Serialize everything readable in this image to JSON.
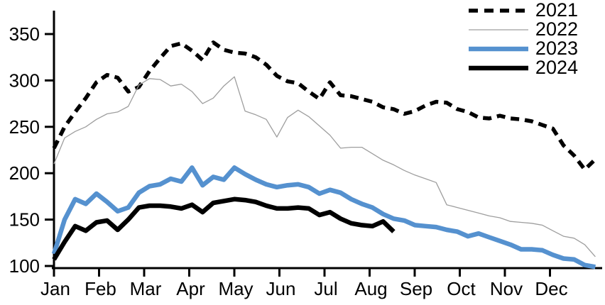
{
  "chart_data": {
    "type": "line",
    "title": "",
    "x_axis": {
      "tick_labels": [
        "Jan",
        "Feb",
        "Mar",
        "Apr",
        "May",
        "Jun",
        "Jul",
        "Aug",
        "Sep",
        "Oct",
        "Nov",
        "Dec"
      ],
      "unit": "month"
    },
    "y_axis": {
      "ticks": [
        100,
        150,
        200,
        250,
        300,
        350
      ],
      "range": [
        100,
        377
      ],
      "grid": false
    },
    "legend": {
      "position": "top-right",
      "entries": [
        "2021",
        "2022",
        "2023",
        "2024"
      ]
    },
    "sampling": "weekly (52 points per full year; 2024 partial, ends mid-August)",
    "series": [
      {
        "name": "2021",
        "style": "dashed",
        "color": "#000000",
        "width": 5.5,
        "values": [
          227,
          250,
          266,
          281,
          298,
          306,
          303,
          288,
          293,
          310,
          324,
          337,
          340,
          332,
          322,
          341,
          333,
          330,
          329,
          325,
          317,
          305,
          299,
          297,
          288,
          280,
          298,
          284,
          283,
          280,
          277,
          271,
          269,
          264,
          267,
          273,
          277,
          276,
          269,
          266,
          260,
          259,
          262,
          259,
          258,
          256,
          252,
          248,
          230,
          219,
          204,
          215
        ]
      },
      {
        "name": "2022",
        "style": "solid",
        "color": "#9e9e9e",
        "width": 1.3,
        "values": [
          210,
          238,
          245,
          250,
          258,
          264,
          266,
          272,
          295,
          302,
          301,
          294,
          296,
          288,
          275,
          281,
          294,
          304,
          267,
          263,
          258,
          239,
          260,
          268,
          261,
          251,
          241,
          227,
          228,
          228,
          221,
          214,
          209,
          203,
          198,
          194,
          190,
          166,
          163,
          160,
          157,
          154,
          152,
          148,
          147,
          146,
          144,
          138,
          132,
          130,
          123,
          110
        ]
      },
      {
        "name": "2023",
        "style": "solid",
        "color": "#5591CF",
        "width": 6.5,
        "values": [
          113,
          150,
          172,
          167,
          178,
          169,
          159,
          163,
          179,
          186,
          188,
          194,
          191,
          206,
          187,
          196,
          193,
          206,
          199,
          193,
          188,
          185,
          187,
          188,
          185,
          178,
          182,
          179,
          172,
          167,
          163,
          156,
          151,
          149,
          144,
          143,
          142,
          139,
          137,
          132,
          135,
          131,
          127,
          123,
          118,
          118,
          117,
          112,
          108,
          107,
          101,
          99
        ]
      },
      {
        "name": "2024",
        "style": "solid",
        "color": "#000000",
        "width": 6.5,
        "values": [
          107,
          126,
          143,
          138,
          147,
          149,
          139,
          150,
          163,
          165,
          165,
          164,
          162,
          166,
          158,
          168,
          170,
          172,
          171,
          169,
          165,
          162,
          162,
          163,
          162,
          155,
          158,
          151,
          146,
          144,
          143,
          148,
          137
        ]
      }
    ]
  }
}
